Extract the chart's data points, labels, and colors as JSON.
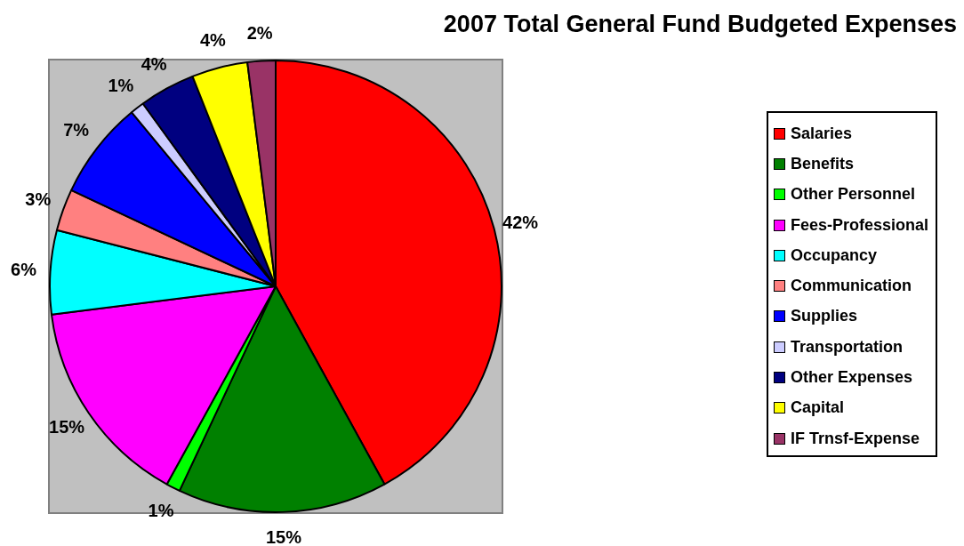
{
  "chart_data": {
    "type": "pie",
    "title": "2007 Total General Fund Budgeted Expenses",
    "categories": [
      "Salaries",
      "Benefits",
      "Other Personnel",
      "Fees-Professional",
      "Occupancy",
      "Communication",
      "Supplies",
      "Transportation",
      "Other Expenses",
      "Capital",
      "IF Trnsf-Expense"
    ],
    "values": [
      42,
      15,
      1,
      15,
      6,
      3,
      7,
      1,
      4,
      4,
      2
    ],
    "value_labels": [
      "42%",
      "15%",
      "1%",
      "15%",
      "6%",
      "3%",
      "7%",
      "1%",
      "4%",
      "4%",
      "2%"
    ],
    "colors": [
      "#ff0000",
      "#008000",
      "#00ff00",
      "#ff00ff",
      "#00ffff",
      "#ff8080",
      "#0000ff",
      "#ccccff",
      "#000080",
      "#ffff00",
      "#993366"
    ],
    "legend": "right"
  }
}
